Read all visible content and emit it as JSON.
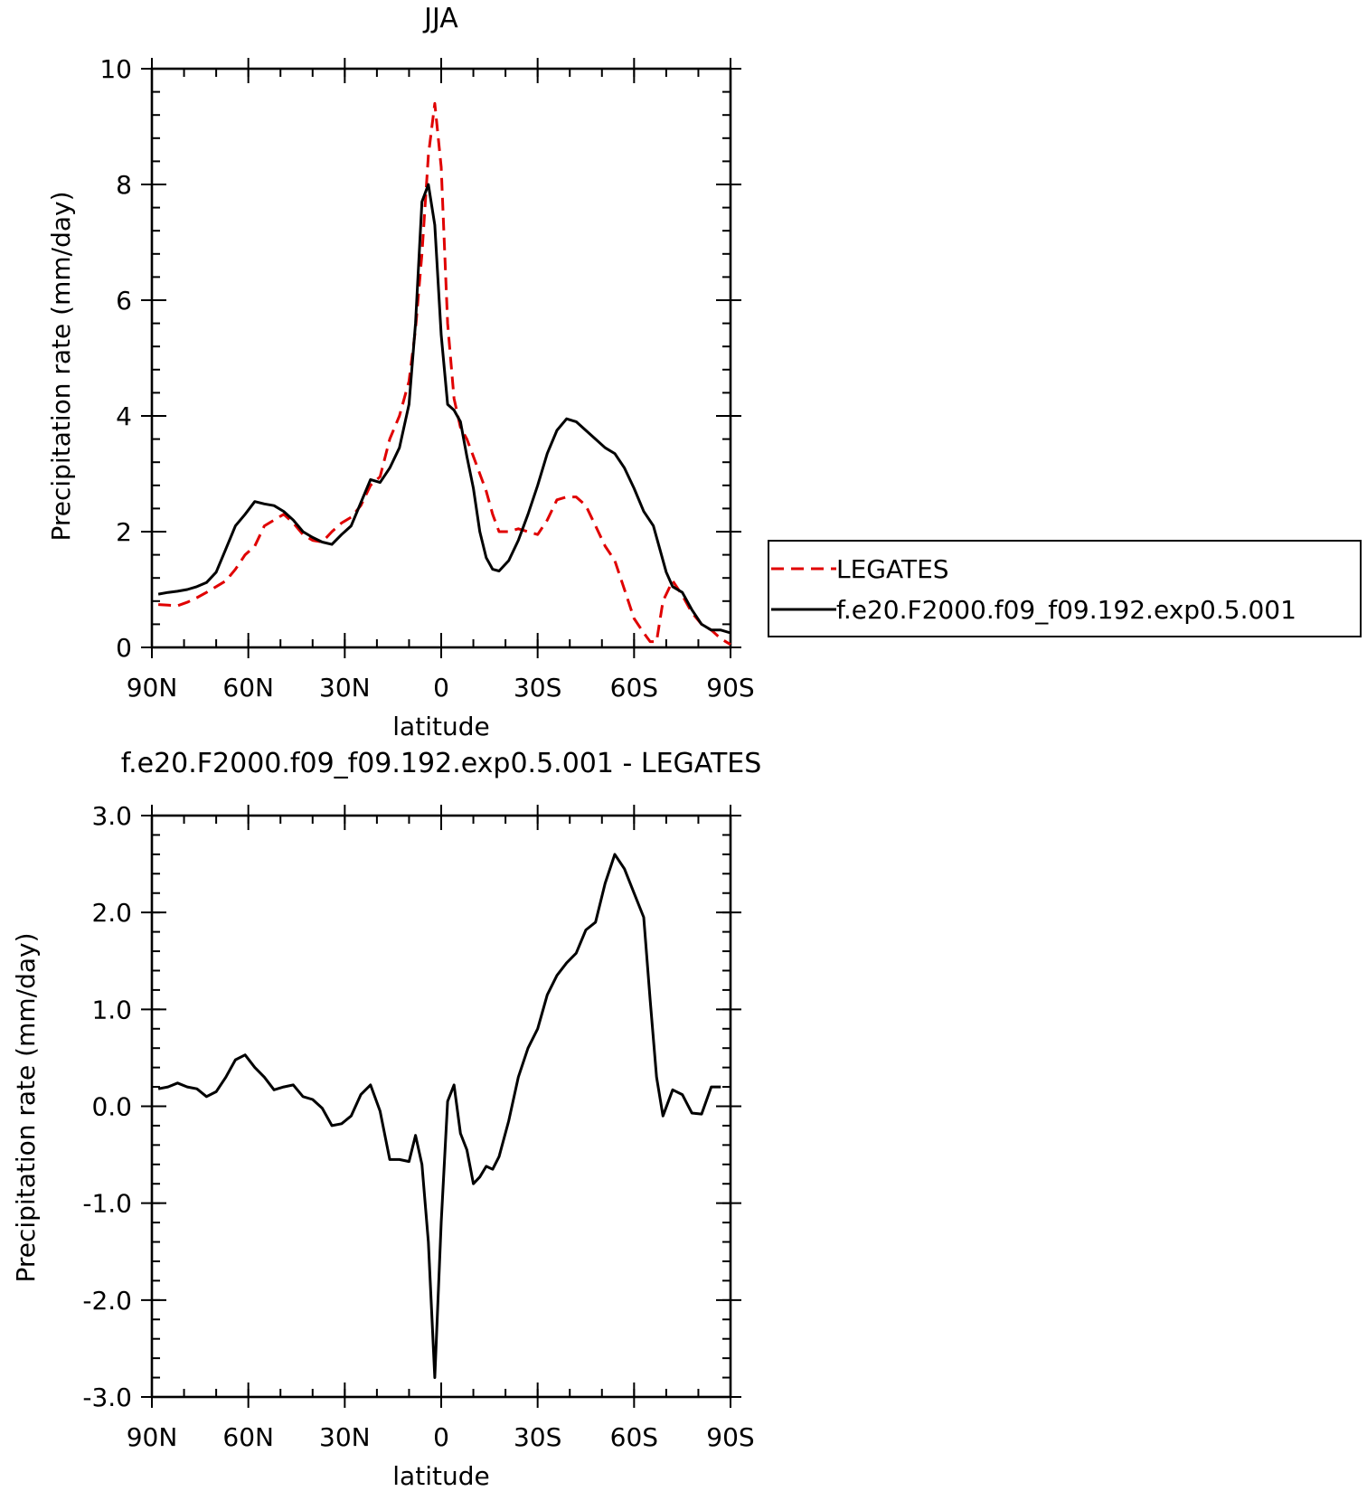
{
  "chart_data": [
    {
      "type": "line",
      "title": "JJA",
      "xlabel": "latitude",
      "ylabel": "Precipitation rate (mm/day)",
      "xlim": [
        -90,
        90
      ],
      "ylim": [
        0,
        10
      ],
      "x_ticks": [
        -90,
        -60,
        -30,
        0,
        30,
        60,
        90
      ],
      "x_tick_labels": [
        "90N",
        "60N",
        "30N",
        "0",
        "30S",
        "60S",
        "90S"
      ],
      "y_ticks": [
        0,
        2,
        4,
        6,
        8,
        10
      ],
      "y_tick_labels": [
        "0",
        "2",
        "4",
        "6",
        "8",
        "10"
      ],
      "y_minor_step": 0.4,
      "x_minor_step": 10,
      "legend_position": "right",
      "series": [
        {
          "name": "LEGATES",
          "color": "#e00000",
          "dash": "dashed",
          "points": [
            [
              -88,
              0.74
            ],
            [
              -85,
              0.73
            ],
            [
              -82,
              0.72
            ],
            [
              -79,
              0.78
            ],
            [
              -76,
              0.86
            ],
            [
              -73,
              0.95
            ],
            [
              -70,
              1.05
            ],
            [
              -67,
              1.15
            ],
            [
              -64,
              1.35
            ],
            [
              -61,
              1.6
            ],
            [
              -58,
              1.75
            ],
            [
              -55,
              2.1
            ],
            [
              -52,
              2.2
            ],
            [
              -49,
              2.3
            ],
            [
              -46,
              2.15
            ],
            [
              -43,
              1.95
            ],
            [
              -40,
              1.85
            ],
            [
              -37,
              1.82
            ],
            [
              -34,
              2.0
            ],
            [
              -31,
              2.15
            ],
            [
              -28,
              2.25
            ],
            [
              -25,
              2.45
            ],
            [
              -22,
              2.8
            ],
            [
              -19,
              2.95
            ],
            [
              -16,
              3.6
            ],
            [
              -13,
              4.0
            ],
            [
              -10,
              4.6
            ],
            [
              -8,
              5.5
            ],
            [
              -6,
              6.8
            ],
            [
              -4,
              8.5
            ],
            [
              -2,
              9.4
            ],
            [
              0,
              8.3
            ],
            [
              2,
              5.6
            ],
            [
              4,
              4.3
            ],
            [
              6,
              3.8
            ],
            [
              8,
              3.6
            ],
            [
              10,
              3.3
            ],
            [
              12,
              3.0
            ],
            [
              14,
              2.7
            ],
            [
              16,
              2.3
            ],
            [
              18,
              2.0
            ],
            [
              21,
              2.0
            ],
            [
              24,
              2.05
            ],
            [
              27,
              2.0
            ],
            [
              30,
              1.95
            ],
            [
              33,
              2.2
            ],
            [
              36,
              2.55
            ],
            [
              39,
              2.6
            ],
            [
              42,
              2.6
            ],
            [
              45,
              2.45
            ],
            [
              48,
              2.1
            ],
            [
              51,
              1.75
            ],
            [
              54,
              1.5
            ],
            [
              57,
              1.0
            ],
            [
              60,
              0.5
            ],
            [
              63,
              0.25
            ],
            [
              65,
              0.1
            ],
            [
              67,
              0.1
            ],
            [
              69,
              0.8
            ],
            [
              72,
              1.15
            ],
            [
              75,
              0.9
            ],
            [
              78,
              0.6
            ],
            [
              81,
              0.4
            ],
            [
              84,
              0.3
            ],
            [
              87,
              0.15
            ],
            [
              90,
              0.05
            ]
          ]
        },
        {
          "name": "f.e20.F2000.f09_f09.192.exp0.5.001",
          "color": "#000000",
          "dash": "solid",
          "points": [
            [
              -88,
              0.92
            ],
            [
              -85,
              0.95
            ],
            [
              -82,
              0.97
            ],
            [
              -79,
              1.0
            ],
            [
              -76,
              1.05
            ],
            [
              -73,
              1.12
            ],
            [
              -70,
              1.3
            ],
            [
              -67,
              1.7
            ],
            [
              -64,
              2.1
            ],
            [
              -61,
              2.3
            ],
            [
              -58,
              2.52
            ],
            [
              -55,
              2.48
            ],
            [
              -52,
              2.45
            ],
            [
              -49,
              2.35
            ],
            [
              -46,
              2.2
            ],
            [
              -43,
              2.0
            ],
            [
              -40,
              1.9
            ],
            [
              -37,
              1.82
            ],
            [
              -34,
              1.78
            ],
            [
              -31,
              1.95
            ],
            [
              -28,
              2.1
            ],
            [
              -25,
              2.5
            ],
            [
              -22,
              2.9
            ],
            [
              -19,
              2.85
            ],
            [
              -16,
              3.1
            ],
            [
              -13,
              3.45
            ],
            [
              -10,
              4.2
            ],
            [
              -8,
              5.6
            ],
            [
              -6,
              7.7
            ],
            [
              -4,
              8.0
            ],
            [
              -2,
              7.3
            ],
            [
              0,
              5.4
            ],
            [
              2,
              4.2
            ],
            [
              4,
              4.1
            ],
            [
              6,
              3.9
            ],
            [
              8,
              3.3
            ],
            [
              10,
              2.75
            ],
            [
              12,
              2.0
            ],
            [
              14,
              1.55
            ],
            [
              16,
              1.35
            ],
            [
              18,
              1.32
            ],
            [
              21,
              1.5
            ],
            [
              24,
              1.85
            ],
            [
              27,
              2.3
            ],
            [
              30,
              2.8
            ],
            [
              33,
              3.35
            ],
            [
              36,
              3.75
            ],
            [
              39,
              3.95
            ],
            [
              42,
              3.9
            ],
            [
              45,
              3.75
            ],
            [
              48,
              3.6
            ],
            [
              51,
              3.45
            ],
            [
              54,
              3.35
            ],
            [
              57,
              3.1
            ],
            [
              60,
              2.75
            ],
            [
              63,
              2.35
            ],
            [
              66,
              2.1
            ],
            [
              68,
              1.7
            ],
            [
              70,
              1.3
            ],
            [
              72,
              1.05
            ],
            [
              75,
              0.95
            ],
            [
              78,
              0.65
            ],
            [
              81,
              0.4
            ],
            [
              84,
              0.3
            ],
            [
              87,
              0.3
            ],
            [
              90,
              0.25
            ]
          ]
        }
      ]
    },
    {
      "type": "line",
      "title": "f.e20.F2000.f09_f09.192.exp0.5.001 - LEGATES",
      "xlabel": "latitude",
      "ylabel": "Precipitation rate (mm/day)",
      "xlim": [
        -90,
        90
      ],
      "ylim": [
        -3,
        3
      ],
      "x_ticks": [
        -90,
        -60,
        -30,
        0,
        30,
        60,
        90
      ],
      "x_tick_labels": [
        "90N",
        "60N",
        "30N",
        "0",
        "30S",
        "60S",
        "90S"
      ],
      "y_ticks": [
        -3,
        -2,
        -1,
        0,
        1,
        2,
        3
      ],
      "y_tick_labels": [
        "-3.0",
        "-2.0",
        "-1.0",
        "0.0",
        "1.0",
        "2.0",
        "3.0"
      ],
      "y_minor_step": 0.2,
      "x_minor_step": 10,
      "series": [
        {
          "color": "#000000",
          "dash": "solid",
          "points": [
            [
              -88,
              0.18
            ],
            [
              -85,
              0.2
            ],
            [
              -82,
              0.24
            ],
            [
              -79,
              0.2
            ],
            [
              -76,
              0.18
            ],
            [
              -73,
              0.1
            ],
            [
              -70,
              0.15
            ],
            [
              -67,
              0.3
            ],
            [
              -64,
              0.48
            ],
            [
              -61,
              0.53
            ],
            [
              -58,
              0.4
            ],
            [
              -55,
              0.3
            ],
            [
              -52,
              0.17
            ],
            [
              -49,
              0.2
            ],
            [
              -46,
              0.22
            ],
            [
              -43,
              0.1
            ],
            [
              -40,
              0.07
            ],
            [
              -37,
              -0.02
            ],
            [
              -34,
              -0.2
            ],
            [
              -31,
              -0.18
            ],
            [
              -28,
              -0.1
            ],
            [
              -25,
              0.12
            ],
            [
              -22,
              0.22
            ],
            [
              -19,
              -0.05
            ],
            [
              -16,
              -0.55
            ],
            [
              -13,
              -0.55
            ],
            [
              -10,
              -0.57
            ],
            [
              -8,
              -0.3
            ],
            [
              -6,
              -0.6
            ],
            [
              -4,
              -1.4
            ],
            [
              -2,
              -2.8
            ],
            [
              0,
              -1.2
            ],
            [
              2,
              0.05
            ],
            [
              4,
              0.22
            ],
            [
              6,
              -0.28
            ],
            [
              8,
              -0.45
            ],
            [
              10,
              -0.8
            ],
            [
              12,
              -0.73
            ],
            [
              14,
              -0.62
            ],
            [
              16,
              -0.65
            ],
            [
              18,
              -0.52
            ],
            [
              21,
              -0.15
            ],
            [
              24,
              0.3
            ],
            [
              27,
              0.6
            ],
            [
              30,
              0.8
            ],
            [
              33,
              1.15
            ],
            [
              36,
              1.35
            ],
            [
              39,
              1.48
            ],
            [
              42,
              1.58
            ],
            [
              45,
              1.82
            ],
            [
              48,
              1.9
            ],
            [
              51,
              2.3
            ],
            [
              54,
              2.6
            ],
            [
              57,
              2.45
            ],
            [
              60,
              2.2
            ],
            [
              63,
              1.95
            ],
            [
              65,
              1.1
            ],
            [
              67,
              0.3
            ],
            [
              69,
              -0.1
            ],
            [
              72,
              0.17
            ],
            [
              75,
              0.12
            ],
            [
              78,
              -0.07
            ],
            [
              81,
              -0.08
            ],
            [
              84,
              0.2
            ],
            [
              87,
              0.2
            ]
          ]
        }
      ]
    }
  ]
}
